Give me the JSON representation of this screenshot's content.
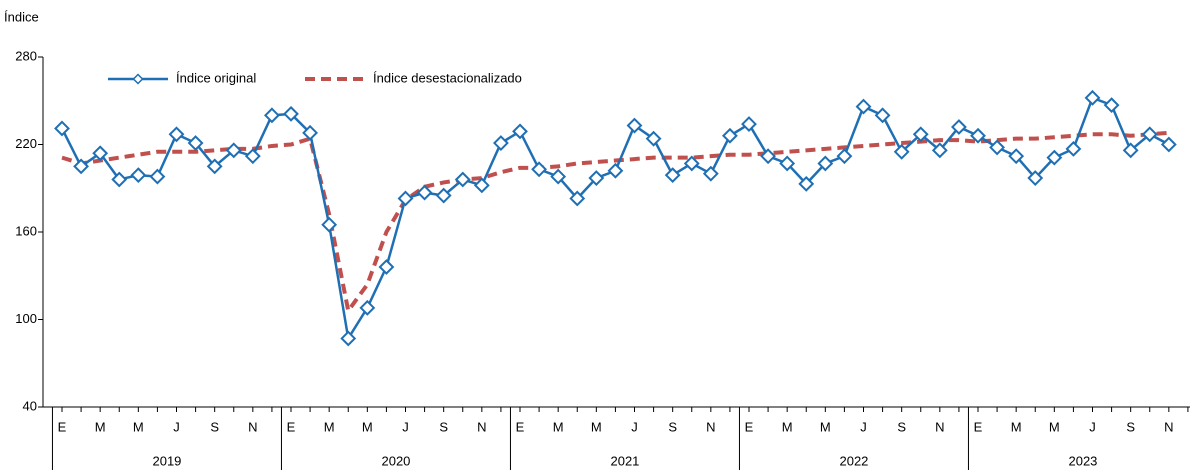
{
  "chart_data": {
    "type": "line",
    "y_label": "Índice",
    "categories": [
      "E",
      null,
      "M",
      null,
      "M",
      null,
      "J",
      null,
      "S",
      null,
      "N",
      null,
      "E",
      null,
      "M",
      null,
      "M",
      null,
      "J",
      null,
      "S",
      null,
      "N",
      null,
      "E",
      null,
      "M",
      null,
      "M",
      null,
      "J",
      null,
      "S",
      null,
      "N",
      null,
      "E",
      null,
      "M",
      null,
      "M",
      null,
      "J",
      null,
      "S",
      null,
      "N",
      null,
      "E",
      null,
      "M",
      null,
      "M",
      null,
      "J",
      null,
      "S",
      null,
      "N"
    ],
    "years": [
      "2019",
      "2020",
      "2021",
      "2022",
      "2023"
    ],
    "ylim": [
      40,
      280
    ],
    "yticks": [
      40,
      100,
      160,
      220,
      280
    ],
    "series": [
      {
        "name": "Índice original",
        "color": "#1f6fb4",
        "marker": "diamond",
        "dashed": false,
        "values": [
          231,
          205,
          214,
          196,
          199,
          198,
          227,
          221,
          205,
          216,
          212,
          240,
          241,
          228,
          165,
          87,
          108,
          136,
          183,
          187,
          185,
          196,
          192,
          221,
          229,
          203,
          198,
          183,
          197,
          202,
          233,
          224,
          199,
          207,
          200,
          226,
          234,
          212,
          207,
          193,
          207,
          212,
          246,
          240,
          215,
          227,
          216,
          232,
          226,
          218,
          212,
          197,
          211,
          217,
          252,
          247,
          216,
          227,
          220
        ]
      },
      {
        "name": "Índice desestacionalizado",
        "color": "#c0504d",
        "marker": null,
        "dashed": true,
        "values": [
          211,
          207,
          209,
          211,
          213,
          215,
          215,
          215,
          216,
          217,
          217,
          219,
          220,
          224,
          172,
          106,
          124,
          160,
          182,
          191,
          194,
          196,
          197,
          201,
          204,
          204,
          205,
          207,
          208,
          209,
          210,
          211,
          211,
          211,
          212,
          213,
          213,
          214,
          215,
          216,
          217,
          218,
          219,
          220,
          221,
          222,
          223,
          223,
          222,
          223,
          224,
          224,
          225,
          226,
          227,
          227,
          226,
          227,
          228
        ]
      }
    ]
  }
}
